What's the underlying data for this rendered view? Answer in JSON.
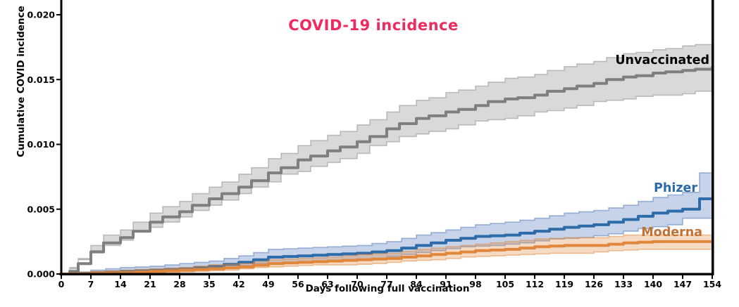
{
  "figure": {
    "title": "COVID-19 incidence",
    "title_color": "#ee2a5e",
    "background_color": "#ffffff",
    "axis_color": "#000000"
  },
  "chart_data": {
    "type": "line",
    "subtype": "step-cumulative-incidence-with-confidence-bands",
    "title": "COVID-19 incidence",
    "xlabel": "Days following full vaccination",
    "ylabel": "Cumulative COVID incidence",
    "xlim": [
      0,
      154
    ],
    "ylim": [
      0,
      0.02
    ],
    "grid": false,
    "legend_position": "end-of-line-labels",
    "xticks": [
      0,
      7,
      14,
      21,
      28,
      35,
      42,
      49,
      56,
      63,
      70,
      77,
      84,
      91,
      98,
      105,
      112,
      119,
      126,
      133,
      140,
      147,
      154
    ],
    "ytick_values": [
      0,
      0.005,
      0.01,
      0.015,
      0.02
    ],
    "ytick_labels": [
      "0.000",
      "0.005",
      "0.010",
      "0.015",
      "0.020"
    ],
    "series": [
      {
        "name": "Unvaccinated",
        "label_color": "#000000",
        "line_color": "#7f7f7f",
        "band_fill": "rgba(128,128,128,0.30)",
        "band_edge": "rgba(128,128,128,0.45)",
        "x": [
          0,
          2,
          4,
          7,
          10,
          14,
          17,
          21,
          24,
          28,
          31,
          35,
          38,
          42,
          45,
          49,
          52,
          56,
          59,
          63,
          66,
          70,
          73,
          77,
          80,
          84,
          87,
          91,
          94,
          98,
          101,
          105,
          108,
          112,
          115,
          119,
          122,
          126,
          129,
          133,
          136,
          140,
          143,
          147,
          150,
          154
        ],
        "y": [
          0,
          0.0002,
          0.0008,
          0.0017,
          0.0024,
          0.0028,
          0.0033,
          0.004,
          0.0044,
          0.0048,
          0.0053,
          0.0058,
          0.0062,
          0.0067,
          0.0072,
          0.0078,
          0.0082,
          0.0088,
          0.0091,
          0.0095,
          0.0098,
          0.0102,
          0.0106,
          0.0112,
          0.0116,
          0.012,
          0.0122,
          0.0125,
          0.0127,
          0.013,
          0.0133,
          0.0135,
          0.0136,
          0.0138,
          0.0141,
          0.0143,
          0.0145,
          0.0147,
          0.015,
          0.0152,
          0.0153,
          0.0155,
          0.0156,
          0.0157,
          0.0158,
          0.016
        ],
        "lo": [
          0,
          0,
          0.0005,
          0.0012,
          0.0018,
          0.0022,
          0.0026,
          0.0033,
          0.0036,
          0.004,
          0.0044,
          0.0049,
          0.0053,
          0.0057,
          0.0062,
          0.0067,
          0.0071,
          0.0077,
          0.0079,
          0.0083,
          0.0086,
          0.0089,
          0.0093,
          0.0099,
          0.0102,
          0.0106,
          0.0108,
          0.011,
          0.0112,
          0.0115,
          0.0118,
          0.0119,
          0.012,
          0.0122,
          0.0125,
          0.0126,
          0.0128,
          0.013,
          0.0133,
          0.0134,
          0.0135,
          0.0137,
          0.0138,
          0.0138,
          0.0139,
          0.0141
        ],
        "hi": [
          0,
          0.0004,
          0.0011,
          0.0022,
          0.003,
          0.0034,
          0.004,
          0.0047,
          0.0052,
          0.0056,
          0.0062,
          0.0067,
          0.0071,
          0.0077,
          0.0082,
          0.0089,
          0.0093,
          0.0099,
          0.0103,
          0.0107,
          0.011,
          0.0115,
          0.0119,
          0.0125,
          0.013,
          0.0134,
          0.0136,
          0.014,
          0.0142,
          0.0145,
          0.0148,
          0.0151,
          0.0152,
          0.0154,
          0.0157,
          0.016,
          0.0162,
          0.0164,
          0.0167,
          0.017,
          0.0171,
          0.0173,
          0.0174,
          0.0176,
          0.0177,
          0.0179
        ]
      },
      {
        "name": "Phizer",
        "label_color": "#2b6aaa",
        "line_color": "#2d6ca8",
        "band_fill": "rgba(77,118,183,0.32)",
        "band_edge": "rgba(77,118,183,0.50)",
        "x": [
          0,
          7,
          14,
          21,
          28,
          35,
          42,
          49,
          56,
          63,
          70,
          77,
          84,
          91,
          98,
          105,
          112,
          119,
          126,
          133,
          140,
          147,
          151,
          154
        ],
        "y": [
          0,
          0.0001,
          0.0002,
          0.0003,
          0.0004,
          0.0006,
          0.0009,
          0.0013,
          0.0014,
          0.0015,
          0.0016,
          0.0018,
          0.0022,
          0.0026,
          0.0029,
          0.003,
          0.0033,
          0.0036,
          0.0038,
          0.0042,
          0.0047,
          0.005,
          0.0058,
          0.0058
        ],
        "lo": [
          0,
          0,
          0.0001,
          0.0001,
          0.0002,
          0.0003,
          0.0005,
          0.0008,
          0.0009,
          0.001,
          0.0011,
          0.0012,
          0.0015,
          0.0018,
          0.0021,
          0.0022,
          0.0024,
          0.0027,
          0.0028,
          0.0031,
          0.0035,
          0.0038,
          0.0043,
          0.0043
        ],
        "hi": [
          0,
          0.0003,
          0.0005,
          0.0006,
          0.0008,
          0.001,
          0.0014,
          0.0019,
          0.002,
          0.0021,
          0.0022,
          0.0025,
          0.003,
          0.0034,
          0.0038,
          0.004,
          0.0043,
          0.0047,
          0.0049,
          0.0053,
          0.0059,
          0.0063,
          0.0078,
          0.0078
        ]
      },
      {
        "name": "Moderna",
        "label_color": "#bf7234",
        "line_color": "#e0873c",
        "band_fill": "rgba(224,135,60,0.30)",
        "band_edge": "rgba(224,135,60,0.50)",
        "x": [
          0,
          7,
          14,
          21,
          28,
          35,
          42,
          49,
          56,
          63,
          70,
          77,
          84,
          91,
          98,
          105,
          112,
          119,
          126,
          133,
          140,
          147,
          154
        ],
        "y": [
          0,
          5e-05,
          0.0001,
          0.0002,
          0.0003,
          0.0004,
          0.00055,
          0.0008,
          0.0009,
          0.001,
          0.0011,
          0.0012,
          0.0014,
          0.0016,
          0.0018,
          0.0019,
          0.0021,
          0.0022,
          0.0022,
          0.0024,
          0.0025,
          0.0025,
          0.0025
        ],
        "lo": [
          0,
          0,
          0,
          0.0001,
          0.0001,
          0.0002,
          0.0003,
          0.0005,
          0.0006,
          0.0007,
          0.0007,
          0.0008,
          0.001,
          0.0011,
          0.0013,
          0.0014,
          0.0015,
          0.0016,
          0.0016,
          0.0018,
          0.0019,
          0.0019,
          0.0019
        ],
        "hi": [
          0,
          0.0002,
          0.0003,
          0.0004,
          0.0005,
          0.0007,
          0.0008,
          0.0011,
          0.0012,
          0.0013,
          0.0015,
          0.0016,
          0.0019,
          0.0021,
          0.0023,
          0.0025,
          0.0027,
          0.0028,
          0.0028,
          0.003,
          0.003,
          0.003,
          0.003
        ]
      }
    ]
  }
}
